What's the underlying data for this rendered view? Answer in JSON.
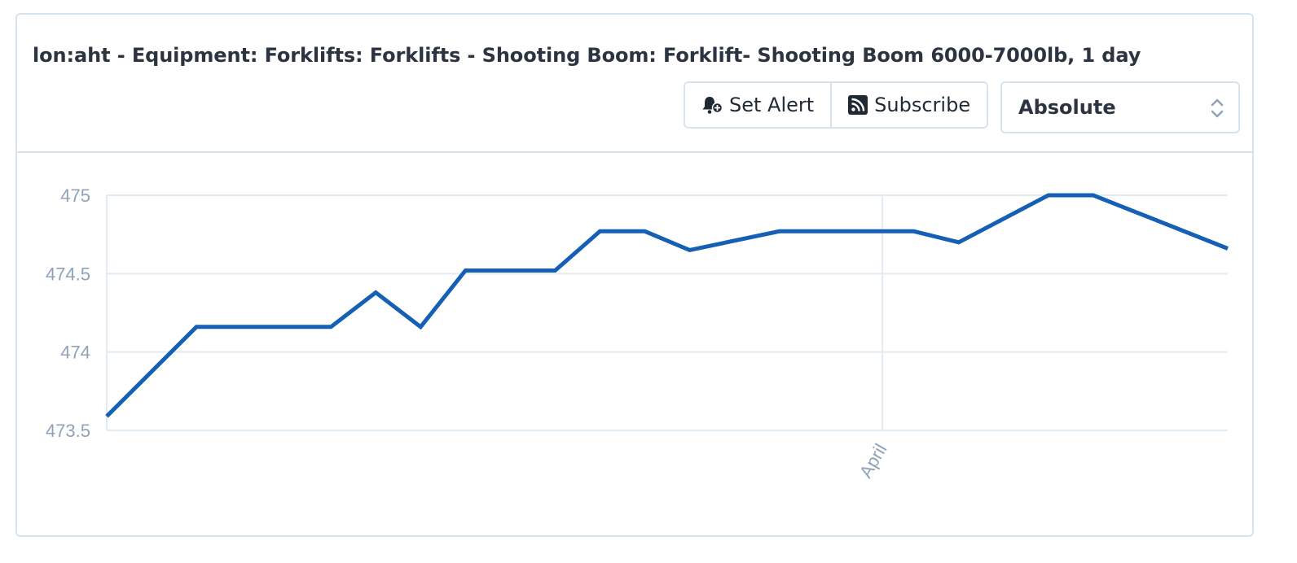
{
  "header": {
    "title": "lon:aht - Equipment: Forklifts: Forklifts - Shooting Boom: Forklift- Shooting Boom 6000-7000lb, 1 day"
  },
  "toolbar": {
    "set_alert_label": "Set Alert",
    "set_alert_icon": "bell-plus-icon",
    "subscribe_label": "Subscribe",
    "subscribe_icon": "rss-icon"
  },
  "scale_select": {
    "value": "Absolute"
  },
  "colors": {
    "line": "#1560b5",
    "grid": "#e3ebf2",
    "tick_text": "#8fa3b8",
    "border": "#d6e4ef"
  },
  "chart_data": {
    "type": "line",
    "title": "",
    "xlabel": "",
    "ylabel": "",
    "ylim": [
      473.5,
      475
    ],
    "yticks": [
      "473.5",
      "474",
      "474.5",
      "475"
    ],
    "xtick_labels": [
      "April"
    ],
    "xtick_positions": [
      17.3
    ],
    "grid": true,
    "legend": "none",
    "series": [
      {
        "x": [
          0,
          2,
          5,
          6,
          7,
          8,
          10,
          11,
          12,
          13,
          15,
          18,
          19,
          21,
          22,
          25
        ],
        "y": [
          473.59,
          474.16,
          474.16,
          474.38,
          474.16,
          474.52,
          474.52,
          474.77,
          474.77,
          474.65,
          474.77,
          474.77,
          474.7,
          475.0,
          475.0,
          474.66
        ]
      }
    ]
  }
}
